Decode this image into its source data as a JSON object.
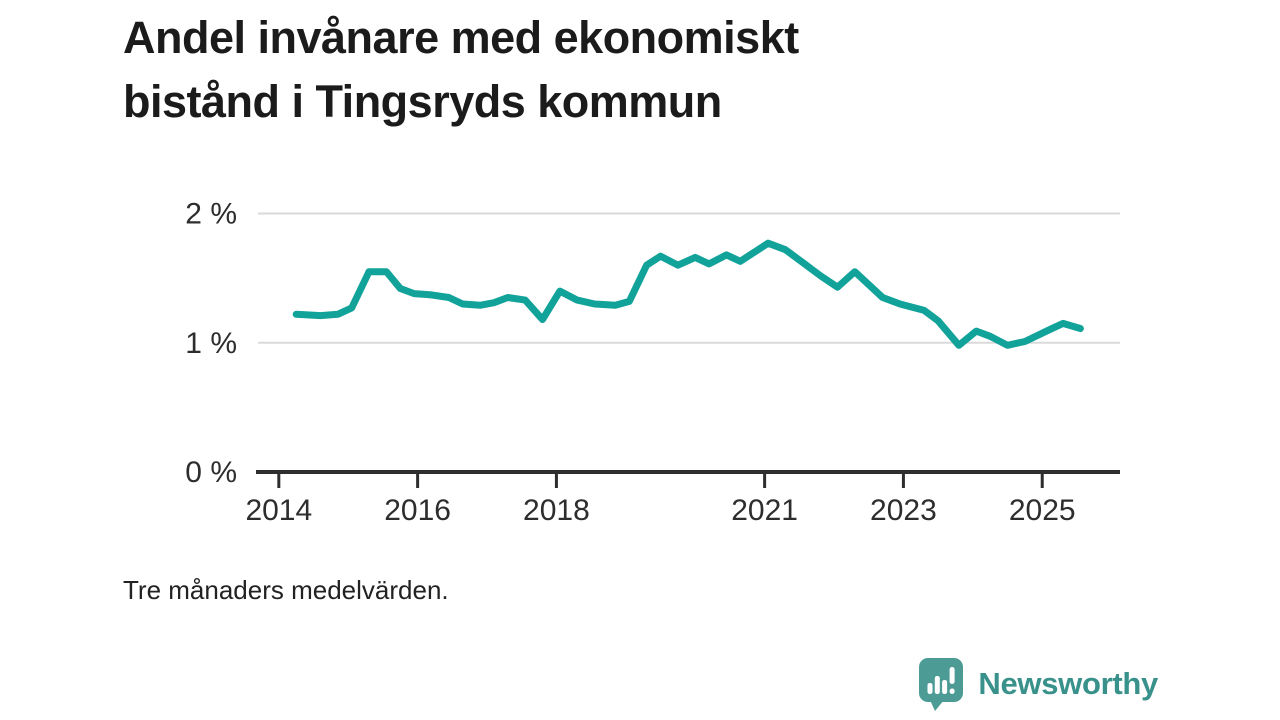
{
  "header": {
    "title_lines": [
      "Andel invånare med ekonomiskt",
      "bistånd i Tingsryds kommun"
    ]
  },
  "chart_data": {
    "type": "line",
    "title": "Andel invånare med ekonomiskt bistånd i Tingsryds kommun",
    "xlabel": "",
    "ylabel": "",
    "unit": "%",
    "grid": "horizontal-only",
    "legend": "none",
    "xlim": [
      2013.7,
      2026.12
    ],
    "ylim": [
      0,
      2.2
    ],
    "x_ticks": [
      {
        "year": 2014,
        "label": "2014"
      },
      {
        "year": 2016,
        "label": "2016"
      },
      {
        "year": 2018,
        "label": "2018"
      },
      {
        "year": 2021,
        "label": "2021"
      },
      {
        "year": 2023,
        "label": "2023"
      },
      {
        "year": 2025,
        "label": "2025"
      }
    ],
    "y_ticks": [
      {
        "value": 0,
        "label": "0 %"
      },
      {
        "value": 1,
        "label": "1 %"
      },
      {
        "value": 2,
        "label": "2 %"
      }
    ],
    "colors": {
      "line": "#11a299",
      "grid": "#dadada",
      "axis": "#2e2e2e",
      "tick_text": "#2d2d2d"
    },
    "series": [
      {
        "name": "Andel invånare med ekonomiskt bistånd",
        "color": "#11a299",
        "points": [
          [
            2014.25,
            1.22
          ],
          [
            2014.6,
            1.21
          ],
          [
            2014.85,
            1.22
          ],
          [
            2015.05,
            1.27
          ],
          [
            2015.3,
            1.55
          ],
          [
            2015.55,
            1.55
          ],
          [
            2015.75,
            1.42
          ],
          [
            2015.95,
            1.38
          ],
          [
            2016.2,
            1.37
          ],
          [
            2016.45,
            1.35
          ],
          [
            2016.65,
            1.3
          ],
          [
            2016.9,
            1.29
          ],
          [
            2017.1,
            1.31
          ],
          [
            2017.3,
            1.35
          ],
          [
            2017.55,
            1.33
          ],
          [
            2017.8,
            1.18
          ],
          [
            2018.05,
            1.4
          ],
          [
            2018.3,
            1.33
          ],
          [
            2018.55,
            1.3
          ],
          [
            2018.85,
            1.29
          ],
          [
            2019.05,
            1.32
          ],
          [
            2019.3,
            1.6
          ],
          [
            2019.5,
            1.67
          ],
          [
            2019.75,
            1.6
          ],
          [
            2020.0,
            1.66
          ],
          [
            2020.2,
            1.61
          ],
          [
            2020.45,
            1.68
          ],
          [
            2020.65,
            1.63
          ],
          [
            2021.05,
            1.77
          ],
          [
            2021.3,
            1.72
          ],
          [
            2021.55,
            1.62
          ],
          [
            2021.8,
            1.52
          ],
          [
            2022.05,
            1.43
          ],
          [
            2022.3,
            1.55
          ],
          [
            2022.7,
            1.35
          ],
          [
            2022.95,
            1.3
          ],
          [
            2023.3,
            1.25
          ],
          [
            2023.5,
            1.17
          ],
          [
            2023.8,
            0.98
          ],
          [
            2024.05,
            1.09
          ],
          [
            2024.25,
            1.05
          ],
          [
            2024.5,
            0.98
          ],
          [
            2024.75,
            1.01
          ],
          [
            2025.1,
            1.1
          ],
          [
            2025.3,
            1.15
          ],
          [
            2025.55,
            1.11
          ]
        ]
      }
    ]
  },
  "footnote": {
    "text": "Tre månaders medelvärden."
  },
  "branding": {
    "name": "Newsworthy",
    "text_color": "#38918a",
    "icon_color": "#4c9c95"
  }
}
